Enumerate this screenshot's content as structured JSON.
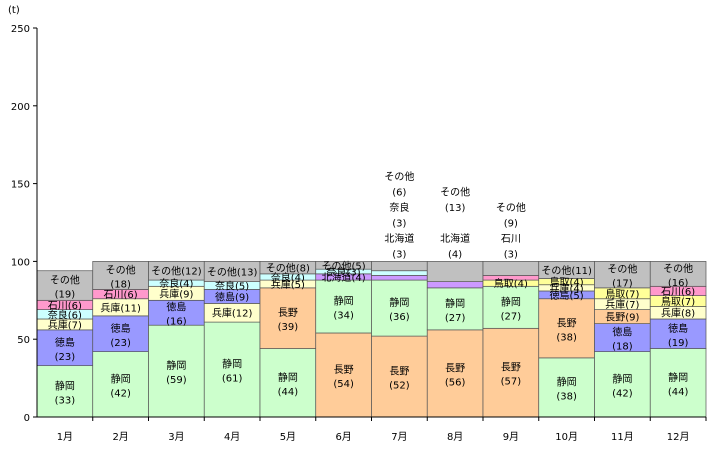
{
  "chart_data": {
    "type": "bar",
    "stacked": true,
    "unit_label": "(t)",
    "ylim": [
      0,
      250
    ],
    "yticks": [
      0,
      50,
      100,
      150,
      200,
      250
    ],
    "grid": false,
    "categories": [
      "1月",
      "2月",
      "3月",
      "4月",
      "5月",
      "6月",
      "7月",
      "8月",
      "9月",
      "10月",
      "11月",
      "12月"
    ],
    "colors": {
      "静岡": "#ccffcc",
      "長野": "#ffcc99",
      "徳島": "#9999ff",
      "兵庫": "#ffffcc",
      "奈良": "#ccffff",
      "石川": "#ff99cc",
      "北海道": "#cc99ff",
      "鳥取": "#ffff99",
      "その他": "#c0c0c0"
    },
    "stacks": [
      {
        "month": "1月",
        "segments": [
          {
            "name": "静岡",
            "value": 33
          },
          {
            "name": "徳島",
            "value": 23
          },
          {
            "name": "兵庫",
            "value": 7
          },
          {
            "name": "奈良",
            "value": 6
          },
          {
            "name": "石川",
            "value": 6
          },
          {
            "name": "その他",
            "value": 19
          }
        ]
      },
      {
        "month": "2月",
        "segments": [
          {
            "name": "静岡",
            "value": 42
          },
          {
            "name": "徳島",
            "value": 23
          },
          {
            "name": "兵庫",
            "value": 11
          },
          {
            "name": "石川",
            "value": 6
          },
          {
            "name": "その他",
            "value": 18
          }
        ]
      },
      {
        "month": "3月",
        "segments": [
          {
            "name": "静岡",
            "value": 59
          },
          {
            "name": "徳島",
            "value": 16
          },
          {
            "name": "兵庫",
            "value": 9
          },
          {
            "name": "奈良",
            "value": 4
          },
          {
            "name": "その他",
            "value": 12
          }
        ]
      },
      {
        "month": "4月",
        "segments": [
          {
            "name": "静岡",
            "value": 61
          },
          {
            "name": "兵庫",
            "value": 12
          },
          {
            "name": "徳島",
            "value": 9
          },
          {
            "name": "奈良",
            "value": 5
          },
          {
            "name": "その他",
            "value": 13
          }
        ]
      },
      {
        "month": "5月",
        "segments": [
          {
            "name": "静岡",
            "value": 44
          },
          {
            "name": "長野",
            "value": 39
          },
          {
            "name": "兵庫",
            "value": 5
          },
          {
            "name": "奈良",
            "value": 4
          },
          {
            "name": "その他",
            "value": 8
          }
        ]
      },
      {
        "month": "6月",
        "segments": [
          {
            "name": "長野",
            "value": 54
          },
          {
            "name": "静岡",
            "value": 34
          },
          {
            "name": "北海道",
            "value": 4
          },
          {
            "name": "奈良",
            "value": 3
          },
          {
            "name": "その他",
            "value": 5
          }
        ]
      },
      {
        "month": "7月",
        "segments": [
          {
            "name": "長野",
            "value": 52
          },
          {
            "name": "静岡",
            "value": 36
          },
          {
            "name": "北海道",
            "value": 3
          },
          {
            "name": "奈良",
            "value": 3
          },
          {
            "name": "その他",
            "value": 6
          }
        ]
      },
      {
        "month": "8月",
        "segments": [
          {
            "name": "長野",
            "value": 56
          },
          {
            "name": "静岡",
            "value": 27
          },
          {
            "name": "北海道",
            "value": 4
          },
          {
            "name": "その他",
            "value": 13
          }
        ]
      },
      {
        "month": "9月",
        "segments": [
          {
            "name": "長野",
            "value": 57
          },
          {
            "name": "静岡",
            "value": 27
          },
          {
            "name": "鳥取",
            "value": 4
          },
          {
            "name": "石川",
            "value": 3
          },
          {
            "name": "その他",
            "value": 9
          }
        ]
      },
      {
        "month": "10月",
        "segments": [
          {
            "name": "静岡",
            "value": 38
          },
          {
            "name": "長野",
            "value": 38
          },
          {
            "name": "徳島",
            "value": 5
          },
          {
            "name": "兵庫",
            "value": 4
          },
          {
            "name": "鳥取",
            "value": 4
          },
          {
            "name": "その他",
            "value": 11
          }
        ]
      },
      {
        "month": "11月",
        "segments": [
          {
            "name": "静岡",
            "value": 42
          },
          {
            "name": "徳島",
            "value": 18
          },
          {
            "name": "長野",
            "value": 9
          },
          {
            "name": "兵庫",
            "value": 7
          },
          {
            "name": "鳥取",
            "value": 7
          },
          {
            "name": "その他",
            "value": 17
          }
        ]
      },
      {
        "month": "12月",
        "segments": [
          {
            "name": "静岡",
            "value": 44
          },
          {
            "name": "徳島",
            "value": 19
          },
          {
            "name": "兵庫",
            "value": 8
          },
          {
            "name": "鳥取",
            "value": 7
          },
          {
            "name": "石川",
            "value": 6
          },
          {
            "name": "その他",
            "value": 16
          }
        ]
      }
    ],
    "outside_labels": [
      {
        "month": "7月",
        "lines": [
          "その他",
          "(6)",
          "奈良",
          "(3)",
          "北海道",
          "(3)"
        ]
      },
      {
        "month": "8月",
        "lines": [
          "その他",
          "(13)",
          "",
          "北海道",
          "(4)"
        ]
      },
      {
        "month": "9月",
        "lines": [
          "その他",
          "(9)",
          "石川",
          "(3)"
        ]
      }
    ]
  }
}
